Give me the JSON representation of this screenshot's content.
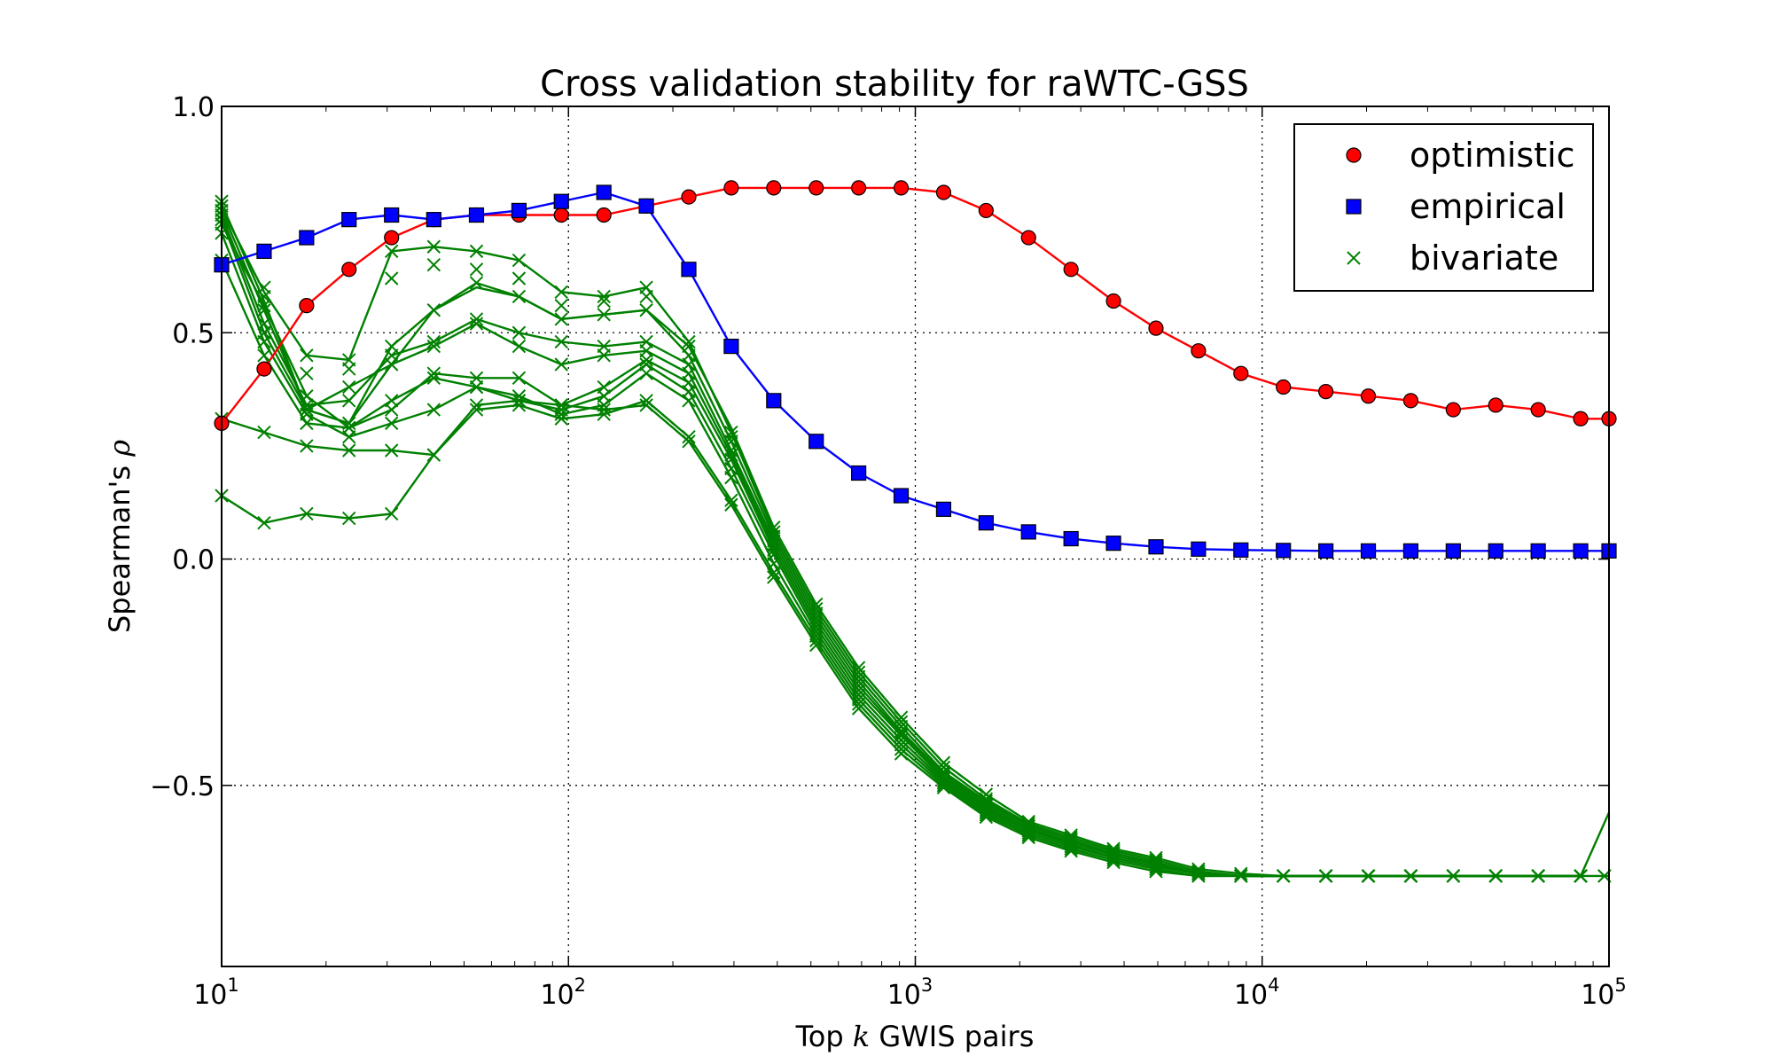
{
  "chart_data": {
    "type": "line",
    "title": "Cross validation stability for raWTC-GSS",
    "xlabel_pre": "Top ",
    "xlabel_var": "k",
    "xlabel_post": " GWIS pairs",
    "ylabel_pre": "Spearman's ",
    "ylabel_var": "ρ",
    "x_scale": "log",
    "xlim": [
      10,
      100000
    ],
    "ylim": [
      -0.9,
      1.0
    ],
    "x_ticks": [
      {
        "value": 10,
        "base": "10",
        "exp": "1"
      },
      {
        "value": 100,
        "base": "10",
        "exp": "2"
      },
      {
        "value": 1000,
        "base": "10",
        "exp": "3"
      },
      {
        "value": 10000,
        "base": "10",
        "exp": "4"
      },
      {
        "value": 100000,
        "base": "10",
        "exp": "5"
      }
    ],
    "y_ticks": [
      {
        "value": 1.0,
        "label": "1.0"
      },
      {
        "value": 0.5,
        "label": "0.5"
      },
      {
        "value": 0.0,
        "label": "0.0"
      },
      {
        "value": -0.5,
        "label": "−0.5"
      }
    ],
    "grid": true,
    "legend_position": "top-right",
    "x": [
      10,
      13.26,
      17.58,
      23.3,
      30.9,
      40.9,
      54.3,
      72.0,
      95.4,
      126.5,
      167.7,
      222.3,
      294.7,
      390.7,
      518.0,
      686.6,
      910.3,
      1206.8,
      1599.9,
      2120.9,
      2811.8,
      3727.6,
      4941.7,
      6551.3,
      8685.1,
      11513.9,
      15264.2,
      20235.9,
      26826.9,
      35564.8,
      47148.7,
      62505.5,
      82864.3,
      100000
    ],
    "series": [
      {
        "name": "optimistic",
        "color": "#ff0000",
        "marker": "circle",
        "values": [
          0.3,
          0.42,
          0.56,
          0.64,
          0.71,
          0.75,
          0.76,
          0.76,
          0.76,
          0.76,
          0.78,
          0.8,
          0.82,
          0.82,
          0.82,
          0.82,
          0.82,
          0.81,
          0.77,
          0.71,
          0.64,
          0.57,
          0.51,
          0.46,
          0.41,
          0.38,
          0.37,
          0.36,
          0.35,
          0.33,
          0.34,
          0.33,
          0.31,
          0.31
        ]
      },
      {
        "name": "empirical",
        "color": "#0000ff",
        "marker": "square",
        "values": [
          0.65,
          0.68,
          0.71,
          0.75,
          0.76,
          0.75,
          0.76,
          0.77,
          0.79,
          0.81,
          0.78,
          0.64,
          0.47,
          0.35,
          0.26,
          0.19,
          0.14,
          0.11,
          0.08,
          0.06,
          0.045,
          0.035,
          0.027,
          0.022,
          0.02,
          0.019,
          0.018,
          0.018,
          0.018,
          0.018,
          0.018,
          0.018,
          0.018,
          0.018
        ]
      },
      {
        "name": "bivariate",
        "color": "#008000",
        "marker": "x",
        "x_end": 97000,
        "tail": [
          [
            0.785,
            0.57,
            0.33,
            0.3,
            0.43,
            0.55,
            0.6,
            0.58,
            0.53,
            0.54,
            0.55,
            0.47,
            0.29,
            0.07,
            -0.1,
            -0.24,
            -0.35,
            -0.45,
            -0.52,
            -0.58,
            -0.61,
            -0.64,
            -0.66,
            -0.685,
            -0.695,
            -0.7,
            -0.7,
            -0.7,
            -0.7,
            -0.7,
            -0.7,
            -0.7,
            -0.7,
            -0.56
          ],
          [
            0.775,
            0.59,
            0.45,
            0.44,
            0.68,
            0.69,
            0.68,
            0.66,
            0.59,
            0.58,
            0.6,
            0.48,
            0.28,
            0.06,
            -0.11,
            -0.25,
            -0.36,
            -0.46,
            -0.53,
            -0.585,
            -0.615,
            -0.645,
            -0.665,
            -0.69,
            -0.7,
            -0.7,
            -0.7,
            -0.7,
            -0.7,
            -0.7,
            -0.7,
            -0.7,
            -0.7,
            -0.7
          ]
        ],
        "lines": [
          [
            0.79,
            0.6,
            0.45,
            0.44,
            0.68,
            0.69,
            0.68,
            0.66,
            0.59,
            0.58,
            0.6,
            0.48,
            0.28,
            0.07,
            -0.1,
            -0.24,
            -0.35,
            -0.45,
            -0.52,
            -0.58,
            -0.61,
            -0.64,
            -0.66,
            -0.685,
            -0.695,
            -0.7,
            -0.7,
            -0.7,
            -0.7,
            -0.7,
            -0.7,
            -0.7,
            -0.7
          ],
          [
            0.78,
            0.58,
            0.41,
            0.42,
            0.62,
            0.65,
            0.64,
            0.62,
            0.56,
            0.57,
            0.58,
            0.47,
            0.27,
            0.06,
            -0.11,
            -0.25,
            -0.36,
            -0.46,
            -0.53,
            -0.585,
            -0.615,
            -0.645,
            -0.665,
            -0.69,
            -0.7,
            -0.7,
            -0.7,
            -0.7,
            -0.7,
            -0.7,
            -0.7,
            -0.7,
            -0.7
          ],
          [
            0.77,
            0.55,
            0.33,
            0.3,
            0.47,
            0.55,
            0.61,
            0.58,
            0.53,
            0.54,
            0.55,
            0.45,
            0.26,
            0.05,
            -0.12,
            -0.26,
            -0.37,
            -0.47,
            -0.535,
            -0.59,
            -0.62,
            -0.65,
            -0.67,
            -0.695,
            -0.7,
            -0.7,
            -0.7,
            -0.7,
            -0.7,
            -0.7,
            -0.7,
            -0.7,
            -0.7
          ],
          [
            0.76,
            0.52,
            0.34,
            0.35,
            0.45,
            0.48,
            0.53,
            0.5,
            0.48,
            0.47,
            0.48,
            0.43,
            0.24,
            0.04,
            -0.13,
            -0.27,
            -0.38,
            -0.475,
            -0.54,
            -0.59,
            -0.62,
            -0.65,
            -0.67,
            -0.695,
            -0.7,
            -0.7,
            -0.7,
            -0.7,
            -0.7,
            -0.7,
            -0.7,
            -0.7,
            -0.7
          ],
          [
            0.75,
            0.5,
            0.33,
            0.38,
            0.43,
            0.47,
            0.52,
            0.47,
            0.43,
            0.45,
            0.46,
            0.41,
            0.23,
            0.03,
            -0.14,
            -0.28,
            -0.385,
            -0.48,
            -0.545,
            -0.595,
            -0.625,
            -0.655,
            -0.675,
            -0.695,
            -0.7,
            -0.7,
            -0.7,
            -0.7,
            -0.7,
            -0.7,
            -0.7,
            -0.7,
            -0.7
          ],
          [
            0.74,
            0.56,
            0.36,
            0.29,
            0.33,
            0.41,
            0.4,
            0.4,
            0.34,
            0.38,
            0.44,
            0.39,
            0.22,
            0.02,
            -0.15,
            -0.29,
            -0.39,
            -0.485,
            -0.55,
            -0.6,
            -0.625,
            -0.655,
            -0.675,
            -0.695,
            -0.7,
            -0.7,
            -0.7,
            -0.7,
            -0.7,
            -0.7,
            -0.7,
            -0.7,
            -0.7
          ],
          [
            0.72,
            0.48,
            0.32,
            0.27,
            0.3,
            0.33,
            0.38,
            0.35,
            0.33,
            0.36,
            0.43,
            0.37,
            0.2,
            0.01,
            -0.16,
            -0.3,
            -0.4,
            -0.49,
            -0.555,
            -0.6,
            -0.63,
            -0.66,
            -0.68,
            -0.695,
            -0.7,
            -0.7,
            -0.7,
            -0.7,
            -0.7,
            -0.7,
            -0.7,
            -0.7,
            -0.7
          ],
          [
            0.66,
            0.45,
            0.3,
            0.29,
            0.35,
            0.4,
            0.38,
            0.36,
            0.32,
            0.34,
            0.41,
            0.35,
            0.18,
            -0.01,
            -0.17,
            -0.31,
            -0.41,
            -0.495,
            -0.56,
            -0.605,
            -0.635,
            -0.66,
            -0.68,
            -0.695,
            -0.7,
            -0.7,
            -0.7,
            -0.7,
            -0.7,
            -0.7,
            -0.7,
            -0.7,
            -0.7
          ],
          [
            0.31,
            0.28,
            0.25,
            0.24,
            0.24,
            0.23,
            0.33,
            0.34,
            0.31,
            0.32,
            0.35,
            0.27,
            0.13,
            -0.03,
            -0.18,
            -0.32,
            -0.42,
            -0.5,
            -0.565,
            -0.61,
            -0.64,
            -0.665,
            -0.685,
            -0.7,
            -0.7,
            -0.7,
            -0.7,
            -0.7,
            -0.7,
            -0.7,
            -0.7,
            -0.7,
            -0.7
          ],
          [
            0.14,
            0.08,
            0.1,
            0.09,
            0.1,
            0.23,
            0.34,
            0.35,
            0.34,
            0.33,
            0.34,
            0.26,
            0.12,
            -0.04,
            -0.19,
            -0.33,
            -0.43,
            -0.505,
            -0.57,
            -0.615,
            -0.645,
            -0.67,
            -0.69,
            -0.7,
            -0.7,
            -0.7,
            -0.7,
            -0.7,
            -0.7,
            -0.7,
            -0.7,
            -0.7,
            -0.7
          ]
        ]
      }
    ]
  }
}
